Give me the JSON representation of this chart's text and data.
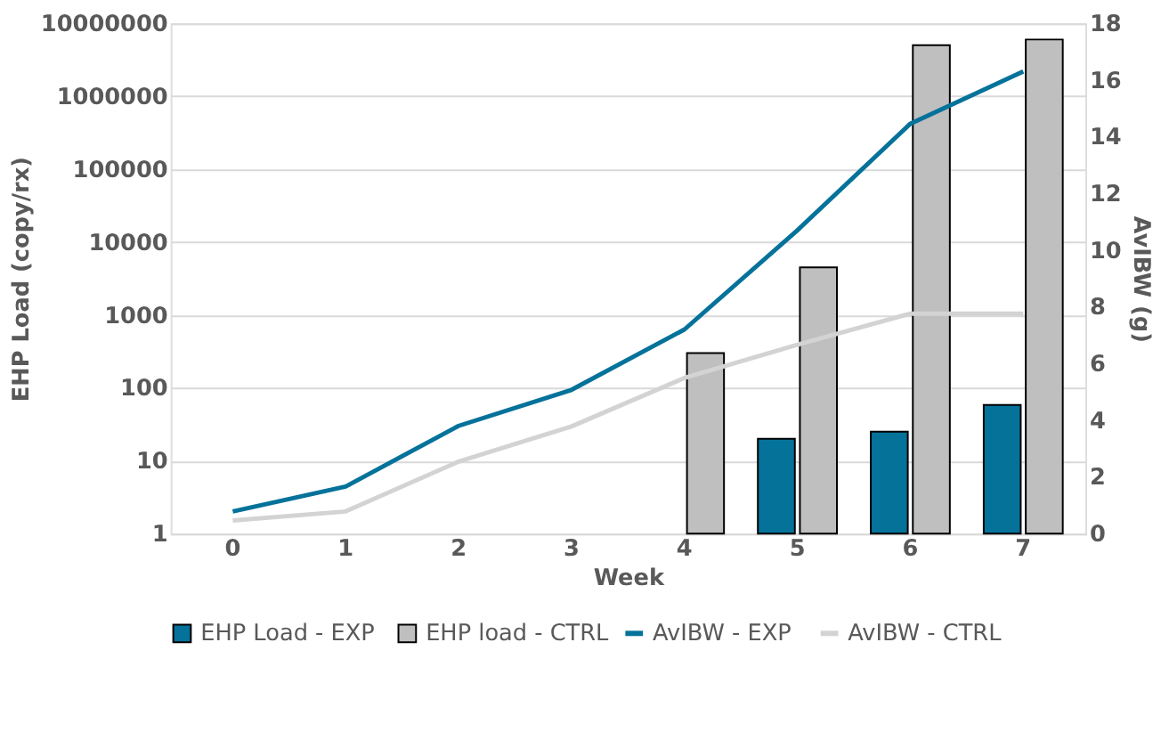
{
  "chart_data": {
    "type": "bar",
    "xlabel": "Week",
    "ylabel": "EHP Load (copy/rx)",
    "y2label": "AvIBW (g)",
    "categories": [
      "0",
      "1",
      "2",
      "3",
      "4",
      "5",
      "6",
      "7"
    ],
    "log": "y",
    "ylim": [
      1,
      10000000
    ],
    "yticks": [
      1,
      10,
      100,
      1000,
      10000,
      100000,
      1000000,
      10000000
    ],
    "y2lim": [
      0,
      18
    ],
    "y2ticks": [
      0,
      2,
      4,
      6,
      8,
      10,
      12,
      14,
      16,
      18
    ],
    "grid": "y",
    "legend": "bottom",
    "series": [
      {
        "name": "EHP Load - EXP",
        "color": "#05729a",
        "values": [
          null,
          null,
          null,
          null,
          null,
          20,
          25,
          58
        ]
      },
      {
        "name": "EHP load - CTRL",
        "color": "#bfbfbf",
        "values": [
          null,
          null,
          null,
          null,
          300,
          4500,
          5000000,
          6000000
        ]
      },
      {
        "name": "AvIBW - EXP",
        "type": "line",
        "axis": "y2",
        "color": "#05729a",
        "values": [
          0.78,
          1.66,
          3.8,
          5.07,
          7.2,
          10.7,
          14.46,
          16.3
        ]
      },
      {
        "name": "AvIBW - CTRL",
        "type": "line",
        "axis": "y2",
        "color": "#d3d3d3",
        "values": [
          0.46,
          0.78,
          2.54,
          3.78,
          5.49,
          6.66,
          7.76,
          7.76
        ]
      }
    ]
  }
}
